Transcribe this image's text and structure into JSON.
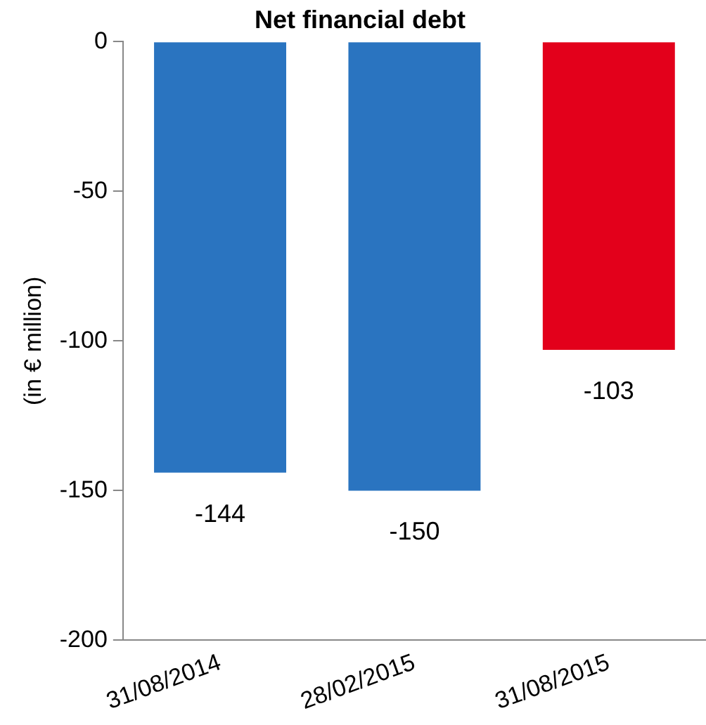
{
  "chart_data": {
    "type": "bar",
    "title": "Net financial debt",
    "ylabel": "(in € million)",
    "categories": [
      "31/08/2014",
      "28/02/2015",
      "31/08/2015"
    ],
    "values": [
      -144,
      -150,
      -103
    ],
    "colors": [
      "#2a74c0",
      "#2a74c0",
      "#e3001b"
    ],
    "ylim": [
      -200,
      0
    ],
    "yticks": [
      -200,
      -150,
      -100,
      -50,
      0
    ],
    "grid": false,
    "legend": false,
    "data_labels": true
  }
}
